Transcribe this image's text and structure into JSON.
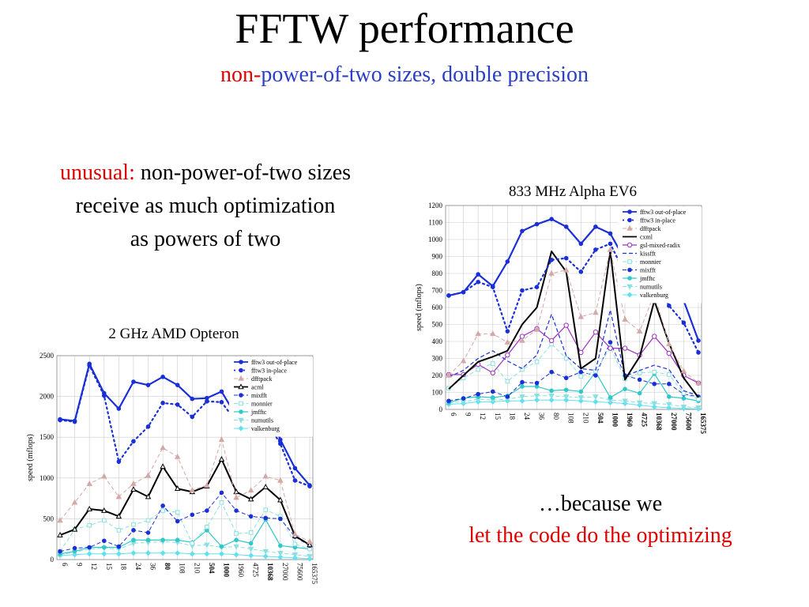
{
  "slide": {
    "title": "FFTW performance",
    "subtitle_red": "non-",
    "subtitle_blue": "power-of-two sizes, double precision",
    "note1_red": "unusual:",
    "note1_line1": " non-power-of-two sizes",
    "note1_line2": "receive as much optimization",
    "note1_line3": "as powers of two",
    "note2_line1": "…because we",
    "note2_line2": "let the code do the optimizing"
  },
  "chart_data": [
    {
      "type": "line",
      "title": "833 MHz Alpha EV6",
      "ylabel": "speed (mflops)",
      "xlabel": "",
      "ylim": [
        0,
        1200
      ],
      "yticks": [
        0,
        100,
        200,
        300,
        400,
        500,
        600,
        700,
        800,
        900,
        1000,
        1100,
        1200
      ],
      "categories": [
        "6",
        "9",
        "12",
        "15",
        "18",
        "24",
        "36",
        "80",
        "108",
        "210",
        "504",
        "1000",
        "1960",
        "4725",
        "10368",
        "27000",
        "75600",
        "165375"
      ],
      "bold_categories": [
        "504",
        "1000",
        "1960",
        "4725",
        "10368",
        "27000",
        "75600",
        "165375"
      ],
      "legend_position": "top-right",
      "series": [
        {
          "name": "fftw3 out-of-place",
          "color": "#1a2fd6",
          "style": "solid",
          "width": 2.2,
          "marker": "circle",
          "values": [
            670,
            690,
            795,
            725,
            870,
            1050,
            1090,
            1120,
            1075,
            975,
            1075,
            1035,
            880,
            725,
            955,
            710,
            640,
            405
          ]
        },
        {
          "name": "fftw3 in-place",
          "color": "#1a2fd6",
          "style": "dotted",
          "width": 2.2,
          "marker": "circle",
          "values": [
            670,
            690,
            750,
            720,
            460,
            700,
            720,
            880,
            890,
            810,
            940,
            975,
            800,
            720,
            775,
            610,
            510,
            335
          ]
        },
        {
          "name": "dfftpack",
          "color": "#d4a8a8",
          "style": "dashed",
          "width": 1,
          "marker": "triangle",
          "values": [
            200,
            285,
            445,
            445,
            395,
            405,
            470,
            800,
            820,
            545,
            570,
            940,
            530,
            460,
            680,
            385,
            225,
            155
          ]
        },
        {
          "name": "cxml",
          "color": "#000000",
          "style": "solid",
          "width": 2,
          "marker": "none",
          "values": [
            120,
            200,
            280,
            310,
            345,
            500,
            600,
            930,
            810,
            240,
            300,
            935,
            175,
            310,
            640,
            390,
            185,
            70
          ]
        },
        {
          "name": "gsl-mixed-radix",
          "color": "#a030c0",
          "style": "solid",
          "width": 1.2,
          "marker": "circle-open",
          "values": [
            205,
            205,
            265,
            215,
            320,
            430,
            475,
            405,
            495,
            335,
            455,
            360,
            360,
            320,
            430,
            330,
            200,
            155
          ]
        },
        {
          "name": "kissfft",
          "color": "#1a2fd6",
          "style": "dashed",
          "width": 1.2,
          "marker": "none",
          "values": [
            190,
            230,
            300,
            345,
            285,
            240,
            320,
            560,
            315,
            240,
            230,
            585,
            195,
            230,
            260,
            235,
            110,
            80
          ]
        },
        {
          "name": "monnier",
          "color": "#8ae0e0",
          "style": "dashed",
          "width": 1,
          "marker": "square-open",
          "values": [
            125,
            185,
            235,
            270,
            165,
            235,
            280,
            385,
            300,
            195,
            225,
            365,
            180,
            215,
            220,
            205,
            95,
            60
          ]
        },
        {
          "name": "mixfft",
          "color": "#1a2fd6",
          "style": "dashed",
          "width": 1,
          "marker": "circle",
          "values": [
            50,
            65,
            90,
            105,
            75,
            160,
            155,
            220,
            185,
            220,
            200,
            395,
            200,
            175,
            150,
            150,
            90,
            75
          ]
        },
        {
          "name": "jmfftc",
          "color": "#30c8c8",
          "style": "solid",
          "width": 1.2,
          "marker": "circle",
          "values": [
            40,
            65,
            75,
            70,
            80,
            135,
            135,
            110,
            115,
            105,
            220,
            70,
            120,
            95,
            210,
            75,
            65,
            50
          ]
        },
        {
          "name": "numutils",
          "color": "#8ae0e0",
          "style": "dashed",
          "width": 1,
          "marker": "triangle-down",
          "values": [
            40,
            45,
            60,
            55,
            60,
            75,
            80,
            80,
            75,
            70,
            75,
            55,
            50,
            40,
            35,
            30,
            15,
            10
          ]
        },
        {
          "name": "valkenburg",
          "color": "#60e0f0",
          "style": "solid",
          "width": 1,
          "marker": "diamond",
          "values": [
            30,
            35,
            45,
            45,
            50,
            50,
            55,
            55,
            55,
            50,
            45,
            40,
            35,
            25,
            15,
            10,
            5,
            3
          ]
        }
      ]
    },
    {
      "type": "line",
      "title": "2 GHz AMD Opteron",
      "ylabel": "speed (mflops)",
      "xlabel": "",
      "ylim": [
        0,
        2500
      ],
      "yticks": [
        0,
        500,
        1000,
        1500,
        2000,
        2500
      ],
      "categories": [
        "6",
        "9",
        "12",
        "15",
        "18",
        "24",
        "36",
        "80",
        "108",
        "210",
        "504",
        "1000",
        "1960",
        "4725",
        "10368",
        "27000",
        "75600",
        "165375"
      ],
      "bold_categories": [
        "80",
        "504",
        "1000",
        "10368"
      ],
      "legend_position": "top-right",
      "series": [
        {
          "name": "fftw3 out-of-place",
          "color": "#1a2fd6",
          "style": "solid",
          "width": 2.2,
          "marker": "circle",
          "values": [
            1720,
            1700,
            2400,
            2040,
            1850,
            2180,
            2140,
            2240,
            2140,
            1970,
            1980,
            2060,
            1760,
            1680,
            1940,
            1470,
            1120,
            910
          ]
        },
        {
          "name": "fftw3 in-place",
          "color": "#1a2fd6",
          "style": "dotted",
          "width": 2.2,
          "marker": "circle",
          "values": [
            1710,
            1690,
            2380,
            2010,
            1200,
            1450,
            1630,
            1920,
            1900,
            1750,
            1940,
            1930,
            1690,
            1540,
            1720,
            1420,
            970,
            900
          ]
        },
        {
          "name": "dfftpack",
          "color": "#d4a8a8",
          "style": "dashed",
          "width": 1,
          "marker": "triangle",
          "values": [
            480,
            700,
            930,
            1020,
            770,
            930,
            1030,
            1370,
            1260,
            850,
            910,
            1470,
            760,
            850,
            1020,
            970,
            310,
            220
          ]
        },
        {
          "name": "acml",
          "color": "#000000",
          "style": "solid",
          "width": 2,
          "marker": "triangle-open",
          "values": [
            300,
            370,
            620,
            600,
            530,
            860,
            770,
            1140,
            870,
            830,
            900,
            1230,
            830,
            740,
            890,
            730,
            290,
            180
          ]
        },
        {
          "name": "mixfft",
          "color": "#1a2fd6",
          "style": "dashed",
          "width": 1,
          "marker": "circle",
          "values": [
            100,
            140,
            150,
            230,
            160,
            360,
            330,
            660,
            470,
            550,
            600,
            820,
            600,
            530,
            510,
            500,
            280,
            170
          ]
        },
        {
          "name": "monnier",
          "color": "#8ae0e0",
          "style": "dashed",
          "width": 1,
          "marker": "square-open",
          "values": [
            100,
            370,
            420,
            480,
            360,
            430,
            480,
            600,
            580,
            200,
            400,
            700,
            320,
            330,
            610,
            530,
            190,
            130
          ]
        },
        {
          "name": "jmfftc",
          "color": "#30c8c8",
          "style": "solid",
          "width": 1.2,
          "marker": "circle",
          "values": [
            70,
            100,
            150,
            150,
            150,
            240,
            240,
            240,
            240,
            210,
            360,
            160,
            240,
            200,
            490,
            170,
            150,
            130
          ]
        },
        {
          "name": "numutils",
          "color": "#8ae0e0",
          "style": "dashed",
          "width": 1,
          "marker": "triangle-down",
          "values": [
            60,
            90,
            130,
            140,
            130,
            200,
            210,
            220,
            210,
            170,
            180,
            150,
            160,
            130,
            100,
            80,
            60,
            40
          ]
        },
        {
          "name": "valkenburg",
          "color": "#60e0f0",
          "style": "solid",
          "width": 1,
          "marker": "diamond",
          "values": [
            50,
            60,
            70,
            70,
            70,
            80,
            80,
            80,
            80,
            70,
            70,
            70,
            60,
            50,
            40,
            30,
            20,
            10
          ]
        }
      ]
    }
  ]
}
